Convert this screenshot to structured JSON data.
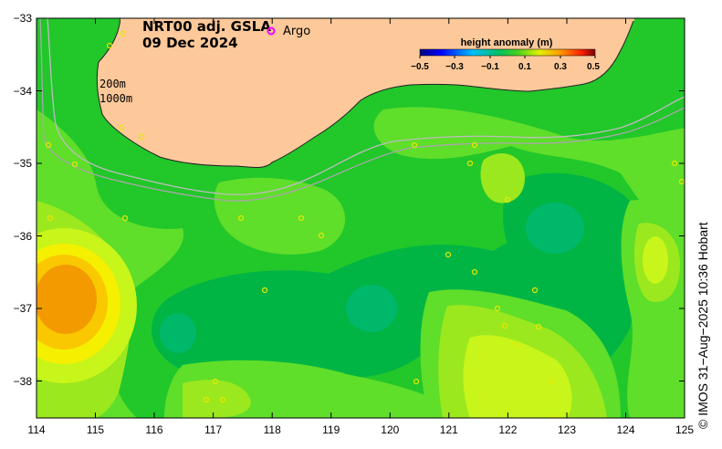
{
  "title": {
    "line1": "NRT00 adj. GSLA",
    "line2": "09 Dec 2024"
  },
  "legend": {
    "argo_label": "Argo",
    "argo_color": "#ff00ff"
  },
  "contours": {
    "shallow": "200m",
    "deep": "1000m"
  },
  "colorbar": {
    "title": "height anomaly (m)",
    "ticks": [
      "−0.5",
      "−0.3",
      "−0.1",
      "0.1",
      "0.3",
      "0.5"
    ]
  },
  "axes": {
    "x_ticks": [
      "114",
      "115",
      "116",
      "117",
      "118",
      "119",
      "120",
      "121",
      "122",
      "123",
      "124",
      "125"
    ],
    "y_ticks": [
      "−33",
      "−34",
      "−35",
      "−36",
      "−37",
      "−38"
    ]
  },
  "credit": "© IMOS 31−Aug−2025 10:36 Hobart",
  "colors": {
    "land": "#fdc99a",
    "base_green": "#22c72a",
    "dark_green": "#00b544",
    "light_green": "#5fde2a",
    "yellow_green": "#9be81f",
    "lime": "#c8f51a",
    "yellow": "#f5f000",
    "orange_yellow": "#f9c800",
    "orange": "#f29a00",
    "teal": "#00b86a"
  }
}
